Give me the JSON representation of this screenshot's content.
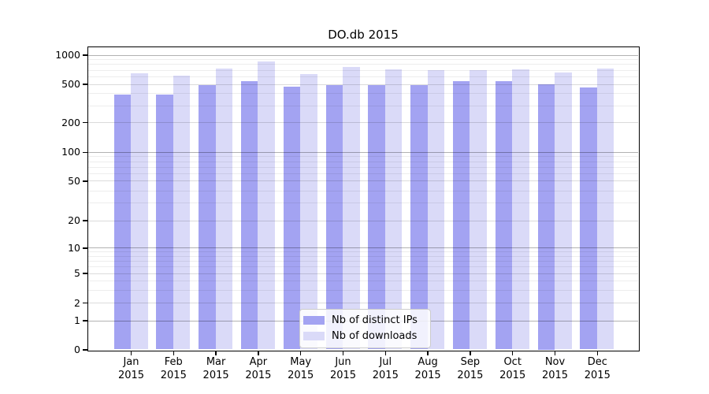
{
  "title": "DO.db 2015",
  "chart_data": {
    "type": "bar",
    "title": "DO.db 2015",
    "categories": [
      "Jan 2015",
      "Feb 2015",
      "Mar 2015",
      "Apr 2015",
      "May 2015",
      "Jun 2015",
      "Jul 2015",
      "Aug 2015",
      "Sep 2015",
      "Oct 2015",
      "Nov 2015",
      "Dec 2015"
    ],
    "months": [
      "Jan",
      "Feb",
      "Mar",
      "Apr",
      "May",
      "Jun",
      "Jul",
      "Aug",
      "Sep",
      "Oct",
      "Nov",
      "Dec"
    ],
    "year_label": "2015",
    "series": [
      {
        "name": "Nb of distinct IPs",
        "color": "#a3a3f2",
        "values": [
          390,
          390,
          485,
          535,
          465,
          487,
          487,
          490,
          530,
          535,
          500,
          460
        ]
      },
      {
        "name": "Nb of downloads",
        "color": "#dadaf8",
        "values": [
          640,
          610,
          720,
          860,
          630,
          755,
          710,
          690,
          690,
          705,
          660,
          725
        ]
      }
    ],
    "y_axis": {
      "ticks": [
        1000,
        500,
        200,
        100,
        50,
        20,
        10,
        5,
        2,
        1,
        0
      ],
      "scale": "symlog",
      "ylim": [
        0,
        1100
      ]
    },
    "xlabel": "",
    "ylabel": "",
    "grid": true,
    "legend_position": "lower center"
  },
  "colors": {
    "distinct_ips": "#a3a3f2",
    "downloads": "#dadaf8",
    "grid_major": "#b3b3b3",
    "grid_light": "#dcdcdc",
    "grid_minor": "#ededed",
    "axis": "#000000",
    "background": "#ffffff"
  }
}
